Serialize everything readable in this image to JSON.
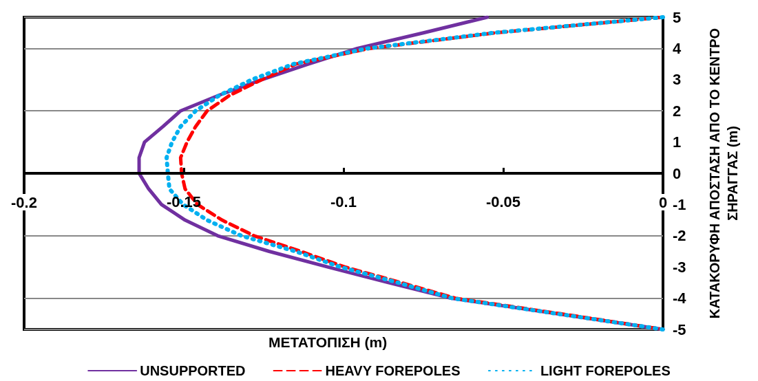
{
  "chart_data": {
    "type": "line",
    "xlabel": "ΜΕΤΑΤΟΠΙΣΗ (m)",
    "ylabel": "ΚΑΤΑΚΟΡΥΦΗ ΑΠΟΣΤΑΣΗ ΑΠΟ ΤΟ ΚΕΝΤΡΟ ΣΗΡΑΓΓΑΣ (m)",
    "xlim": [
      -0.2,
      0
    ],
    "xticks": [
      -0.2,
      -0.15,
      -0.1,
      -0.05,
      0
    ],
    "ylim": [
      -5,
      5
    ],
    "yticks": [
      -5,
      -4,
      -3,
      -2,
      -1,
      0,
      1,
      2,
      3,
      4,
      5
    ],
    "grid": "y",
    "legend": "bottom",
    "marker": "none",
    "series": [
      {
        "name": "UNSUPPORTED",
        "color": "#7030a0",
        "line_style": "solid",
        "x": [
          -0.055,
          -0.075,
          -0.0957,
          -0.111,
          -0.1256,
          -0.139,
          -0.151,
          -0.1565,
          -0.1623,
          -0.164,
          -0.164,
          -0.161,
          -0.157,
          -0.1496,
          -0.1394,
          -0.1233,
          -0.105,
          -0.086,
          -0.0664,
          -0.033,
          0
        ],
        "values": [
          5,
          4.5,
          4,
          3.5,
          3,
          2.5,
          2,
          1.5,
          1,
          0.5,
          0,
          -0.5,
          -1,
          -1.5,
          -2,
          -2.5,
          -3,
          -3.5,
          -4,
          -4.5,
          -5
        ]
      },
      {
        "name": "HEAVY FOREPOLES",
        "color": "#ff0000",
        "line_style": "dashed",
        "x": [
          0,
          -0.0524,
          -0.0918,
          -0.1149,
          -0.1256,
          -0.1356,
          -0.1427,
          -0.1463,
          -0.149,
          -0.151,
          -0.1507,
          -0.1496,
          -0.1457,
          -0.138,
          -0.128,
          -0.1134,
          -0.0996,
          -0.082,
          -0.065,
          -0.032,
          0
        ],
        "values": [
          5,
          4.5,
          4,
          3.5,
          3,
          2.5,
          2,
          1.5,
          1,
          0.5,
          0,
          -0.5,
          -1,
          -1.5,
          -2,
          -2.5,
          -3,
          -3.5,
          -4,
          -4.5,
          -5
        ]
      },
      {
        "name": "LIGHT FOREPOLES",
        "color": "#00b0f0",
        "line_style": "dotted",
        "x": [
          0,
          -0.053,
          -0.0925,
          -0.1157,
          -0.1287,
          -0.1388,
          -0.1463,
          -0.151,
          -0.1537,
          -0.1554,
          -0.155,
          -0.1545,
          -0.1502,
          -0.1427,
          -0.132,
          -0.115,
          -0.101,
          -0.083,
          -0.066,
          -0.033,
          0
        ],
        "values": [
          5,
          4.5,
          4,
          3.5,
          3,
          2.5,
          2,
          1.5,
          1,
          0.5,
          0,
          -0.5,
          -1,
          -1.5,
          -2,
          -2.5,
          -3,
          -3.5,
          -4,
          -4.5,
          -5
        ]
      }
    ]
  }
}
